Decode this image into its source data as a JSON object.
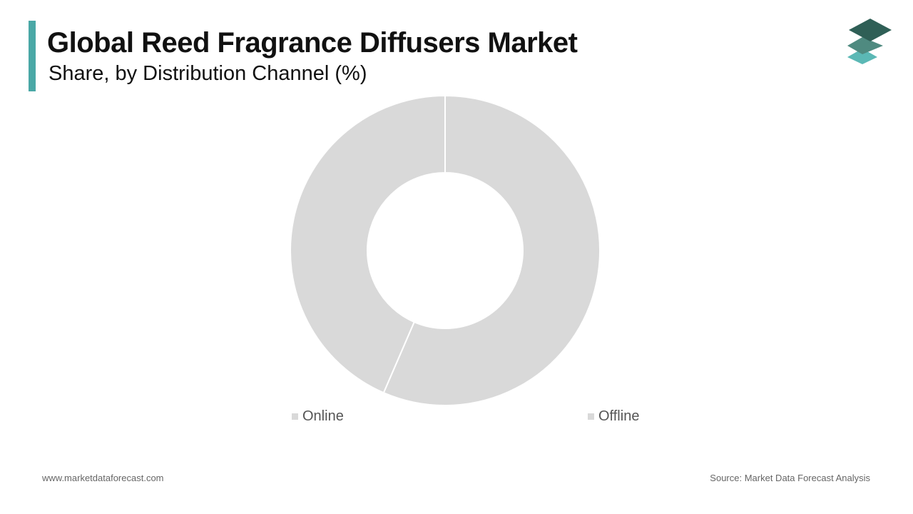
{
  "header": {
    "title": "Global Reed Fragrance Diffusers Market",
    "subtitle": "Share, by Distribution Channel (%)"
  },
  "colors": {
    "accent": "#4aa8a6",
    "slice": "#d9d9d9",
    "slice_separator": "#ffffff",
    "logo_top": "#2f5f56",
    "logo_mid": "#4f8a80",
    "logo_bottom": "#5bb8b5"
  },
  "logo": {
    "icon": "stacked-layers-icon"
  },
  "chart_data": {
    "type": "pie",
    "donut": true,
    "categories": [
      "Online",
      "Offline"
    ],
    "values": [
      43.5,
      56.5
    ],
    "unit": "%",
    "legend_position": "bottom"
  },
  "footer": {
    "website": "www.marketdataforecast.com",
    "source": "Source: Market Data Forecast Analysis"
  }
}
